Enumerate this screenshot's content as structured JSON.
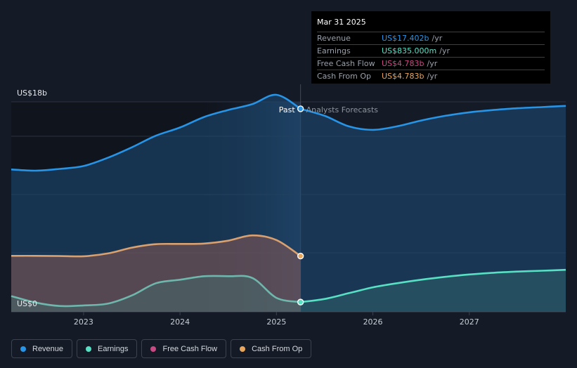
{
  "chart_data": {
    "type": "line",
    "y_axis": {
      "ylim": [
        0,
        18
      ],
      "top_label": "US$18b",
      "bottom_label": "US$0"
    },
    "x_axis": {
      "xlim": [
        2022.25,
        2028.0
      ],
      "ticks": [
        2023,
        2024,
        2025,
        2026,
        2027
      ]
    },
    "past_divider": 2025.25,
    "past_label": "Past",
    "forecast_label": "Analysts Forecasts",
    "series": [
      {
        "name": "Revenue",
        "color": "#2894e6",
        "x": [
          2022.25,
          2022.5,
          2022.75,
          2023.0,
          2023.25,
          2023.5,
          2023.75,
          2024.0,
          2024.25,
          2024.5,
          2024.75,
          2025.0,
          2025.25,
          2025.5,
          2025.75,
          2026.0,
          2026.25,
          2026.5,
          2026.75,
          2027.0,
          2027.25,
          2027.5,
          2027.75,
          2028.0
        ],
        "values": [
          12.2,
          12.1,
          12.25,
          12.5,
          13.2,
          14.1,
          15.1,
          15.8,
          16.7,
          17.3,
          17.8,
          18.6,
          17.4,
          16.8,
          15.9,
          15.6,
          15.9,
          16.4,
          16.8,
          17.1,
          17.3,
          17.45,
          17.55,
          17.65
        ]
      },
      {
        "name": "Earnings",
        "color": "#58e0c4",
        "x": [
          2022.25,
          2022.5,
          2022.75,
          2023.0,
          2023.25,
          2023.5,
          2023.75,
          2024.0,
          2024.25,
          2024.5,
          2024.75,
          2025.0,
          2025.25,
          2025.5,
          2025.75,
          2026.0,
          2026.25,
          2026.5,
          2026.75,
          2027.0,
          2027.25,
          2027.5,
          2027.75,
          2028.0
        ],
        "values": [
          1.35,
          0.8,
          0.5,
          0.55,
          0.7,
          1.4,
          2.45,
          2.75,
          3.05,
          3.05,
          2.9,
          1.2,
          0.835,
          1.1,
          1.6,
          2.1,
          2.45,
          2.75,
          3.0,
          3.2,
          3.35,
          3.45,
          3.52,
          3.6
        ]
      },
      {
        "name": "Free Cash Flow",
        "color": "#c84a84",
        "x": [
          2022.25,
          2022.5,
          2022.75,
          2023.0,
          2023.25,
          2023.5,
          2023.75,
          2024.0,
          2024.25,
          2024.5,
          2024.75,
          2025.0,
          2025.25
        ],
        "values": [
          4.8,
          4.8,
          4.78,
          4.76,
          5.0,
          5.5,
          5.8,
          5.82,
          5.85,
          6.1,
          6.55,
          6.15,
          4.783
        ]
      },
      {
        "name": "Cash From Op",
        "color": "#e8a65c",
        "x": [
          2022.25,
          2022.5,
          2022.75,
          2023.0,
          2023.25,
          2023.5,
          2023.75,
          2024.0,
          2024.25,
          2024.5,
          2024.75,
          2025.0,
          2025.25
        ],
        "values": [
          4.8,
          4.8,
          4.78,
          4.76,
          5.0,
          5.5,
          5.8,
          5.82,
          5.85,
          6.1,
          6.55,
          6.15,
          4.783
        ]
      }
    ],
    "highlight_points": [
      {
        "series": "Revenue",
        "x": 2025.25,
        "y": 17.402
      },
      {
        "series": "Cash From Op",
        "x": 2025.25,
        "y": 4.783
      },
      {
        "series": "Earnings",
        "x": 2025.25,
        "y": 0.835
      }
    ]
  },
  "tooltip": {
    "date": "Mar 31 2025",
    "rows": [
      {
        "label": "Revenue",
        "value": "US$17.402b",
        "unit": "/yr",
        "color": "#2894e6"
      },
      {
        "label": "Earnings",
        "value": "US$835.000m",
        "unit": "/yr",
        "color": "#58e0c4"
      },
      {
        "label": "Free Cash Flow",
        "value": "US$4.783b",
        "unit": "/yr",
        "color": "#c84a84"
      },
      {
        "label": "Cash From Op",
        "value": "US$4.783b",
        "unit": "/yr",
        "color": "#e8a65c"
      }
    ]
  },
  "legend": [
    {
      "label": "Revenue",
      "color": "#2894e6"
    },
    {
      "label": "Earnings",
      "color": "#58e0c4"
    },
    {
      "label": "Free Cash Flow",
      "color": "#c84a84"
    },
    {
      "label": "Cash From Op",
      "color": "#e8a65c"
    }
  ]
}
